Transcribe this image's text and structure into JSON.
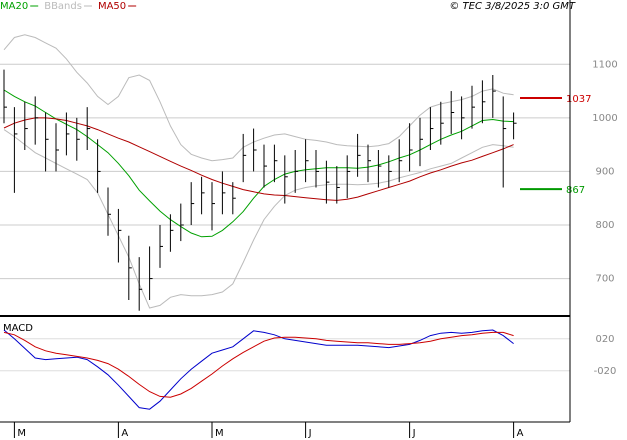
{
  "chart_data": [
    {
      "type": "ohlc",
      "title": "© TEC 3/8/2025 3:0 GMT",
      "grid": true,
      "ylim": [
        632,
        1220
      ],
      "yticks": [
        700,
        800,
        900,
        1000,
        1100
      ],
      "color": "#000000",
      "high": [
        1090,
        1020,
        1030,
        1040,
        1010,
        990,
        1010,
        1000,
        1020,
        960,
        870,
        830,
        780,
        740,
        760,
        800,
        820,
        840,
        880,
        890,
        880,
        900,
        880,
        970,
        980,
        950,
        950,
        930,
        940,
        960,
        940,
        920,
        910,
        930,
        970,
        950,
        940,
        930,
        960,
        990,
        1000,
        1020,
        1030,
        1050,
        1040,
        1060,
        1070,
        1080,
        1040,
        1010
      ],
      "low": [
        990,
        860,
        940,
        950,
        900,
        900,
        930,
        920,
        940,
        860,
        780,
        730,
        660,
        640,
        660,
        720,
        750,
        770,
        800,
        820,
        790,
        820,
        820,
        880,
        900,
        870,
        880,
        840,
        860,
        880,
        870,
        840,
        840,
        850,
        890,
        880,
        870,
        870,
        880,
        900,
        910,
        940,
        950,
        970,
        960,
        980,
        990,
        1000,
        870,
        960
      ],
      "close": [
        1020,
        970,
        980,
        1000,
        960,
        940,
        970,
        960,
        980,
        900,
        820,
        790,
        720,
        680,
        700,
        760,
        790,
        800,
        840,
        860,
        840,
        860,
        850,
        930,
        940,
        910,
        920,
        890,
        900,
        920,
        900,
        880,
        870,
        900,
        930,
        920,
        910,
        900,
        920,
        940,
        960,
        980,
        990,
        1010,
        1000,
        1020,
        1030,
        1050,
        980,
        990
      ],
      "series": [
        {
          "name": "MA20",
          "color": "#00a000",
          "values": [
            1052,
            1040,
            1030,
            1022,
            1010,
            998,
            988,
            978,
            965,
            950,
            935,
            915,
            892,
            865,
            845,
            826,
            810,
            797,
            785,
            778,
            779,
            790,
            806,
            825,
            850,
            872,
            885,
            895,
            900,
            903,
            905,
            907,
            907,
            907,
            906,
            908,
            912,
            918,
            925,
            931,
            940,
            950,
            960,
            968,
            975,
            985,
            995,
            997,
            994,
            993
          ]
        },
        {
          "name": "BBands",
          "color": "#bbbbbb",
          "upper": [
            1127,
            1150,
            1155,
            1150,
            1140,
            1130,
            1110,
            1085,
            1065,
            1040,
            1025,
            1040,
            1075,
            1080,
            1070,
            1030,
            985,
            950,
            932,
            925,
            920,
            922,
            925,
            945,
            955,
            962,
            968,
            970,
            965,
            960,
            958,
            955,
            950,
            948,
            947,
            946,
            948,
            952,
            965,
            985,
            1005,
            1020,
            1026,
            1030,
            1034,
            1040,
            1050,
            1054,
            1046,
            1043
          ],
          "lower": [
            978,
            965,
            950,
            935,
            925,
            915,
            905,
            895,
            885,
            860,
            820,
            780,
            740,
            690,
            645,
            650,
            665,
            670,
            668,
            668,
            670,
            675,
            690,
            730,
            772,
            810,
            835,
            855,
            865,
            870,
            873,
            875,
            876,
            876,
            875,
            876,
            878,
            882,
            888,
            893,
            898,
            905,
            910,
            915,
            925,
            935,
            945,
            950,
            948,
            945
          ]
        },
        {
          "name": "MA50",
          "color": "#b00000",
          "values": [
            981,
            990,
            996,
            1000,
            1000,
            998,
            995,
            990,
            985,
            978,
            970,
            962,
            955,
            946,
            937,
            928,
            919,
            910,
            902,
            893,
            885,
            878,
            872,
            866,
            862,
            858,
            856,
            855,
            853,
            851,
            849,
            847,
            846,
            848,
            852,
            858,
            864,
            870,
            876,
            882,
            890,
            897,
            903,
            910,
            916,
            921,
            928,
            935,
            942,
            950
          ]
        }
      ],
      "levels": [
        {
          "value": 1037,
          "color": "#cc0000"
        },
        {
          "value": 867,
          "color": "#009900"
        }
      ]
    },
    {
      "type": "line",
      "title": "MACD",
      "ylim": [
        -84,
        46
      ],
      "yticks": [
        {
          "value": 20,
          "label": "020"
        },
        {
          "value": -20,
          "label": "-020"
        }
      ],
      "categories": [
        null,
        "M",
        null,
        null,
        null,
        null,
        null,
        null,
        null,
        null,
        null,
        "A",
        null,
        null,
        null,
        null,
        null,
        null,
        null,
        null,
        "M",
        null,
        null,
        null,
        null,
        null,
        null,
        null,
        null,
        "J",
        null,
        null,
        null,
        null,
        null,
        null,
        null,
        null,
        null,
        "J",
        null,
        null,
        null,
        null,
        null,
        null,
        null,
        null,
        null,
        "A"
      ],
      "series": [
        {
          "color": "#0000cc",
          "values": [
            31,
            20,
            8,
            -4,
            -6,
            -5,
            -4,
            -3,
            -6,
            -15,
            -25,
            -38,
            -52,
            -66,
            -68,
            -58,
            -44,
            -30,
            -18,
            -8,
            2,
            6,
            10,
            20,
            30,
            28,
            25,
            20,
            18,
            16,
            14,
            12,
            12,
            12,
            12,
            11,
            10,
            9,
            11,
            13,
            18,
            24,
            27,
            28,
            27,
            28,
            30,
            31,
            24,
            14
          ]
        },
        {
          "color": "#cc0000",
          "values": [
            28,
            25,
            18,
            10,
            5,
            2,
            0,
            -2,
            -4,
            -7,
            -11,
            -18,
            -27,
            -37,
            -46,
            -52,
            -53,
            -49,
            -42,
            -33,
            -24,
            -14,
            -5,
            3,
            10,
            17,
            21,
            22,
            22,
            21,
            20,
            18,
            17,
            16,
            15,
            15,
            14,
            13,
            13,
            14,
            15,
            17,
            20,
            22,
            24,
            25,
            27,
            28,
            28,
            24
          ]
        }
      ]
    }
  ]
}
